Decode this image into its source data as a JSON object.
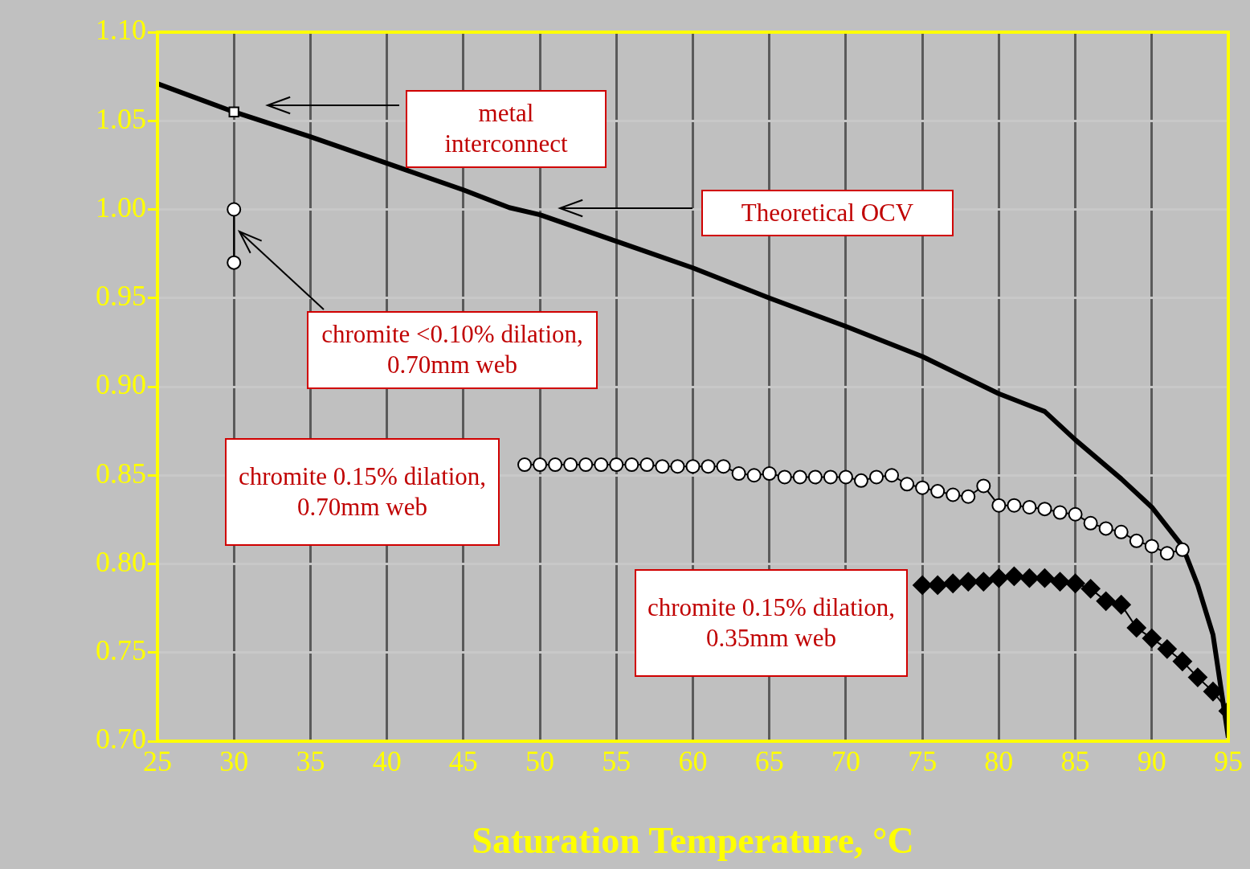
{
  "chart_data": {
    "type": "line",
    "xlabel": "Saturation Temperature, °C",
    "xlim": [
      25,
      95
    ],
    "xticks": [
      25,
      30,
      35,
      40,
      45,
      50,
      55,
      60,
      65,
      70,
      75,
      80,
      85,
      90,
      95
    ],
    "ylim": [
      0.7,
      1.1
    ],
    "yticks": [
      {
        "value": 0.7,
        "label": "0.70"
      },
      {
        "value": 0.75,
        "label": "0.75"
      },
      {
        "value": 0.8,
        "label": "0.80"
      },
      {
        "value": 0.85,
        "label": "0.85"
      },
      {
        "value": 0.9,
        "label": "0.90"
      },
      {
        "value": 0.95,
        "label": "0.95"
      },
      {
        "value": 1.0,
        "label": "1.00"
      },
      {
        "value": 1.05,
        "label": "1.05"
      },
      {
        "value": 1.1,
        "label": "1.10"
      }
    ],
    "grid": true,
    "legend": false,
    "series": [
      {
        "marker": "none",
        "color": "#000000",
        "x": [
          25,
          30,
          35,
          40,
          45,
          48,
          50,
          55,
          60,
          65,
          70,
          75,
          80,
          83,
          85,
          88,
          90,
          92,
          93,
          94,
          95
        ],
        "values": [
          1.071,
          1.055,
          1.041,
          1.026,
          1.011,
          1.001,
          0.997,
          0.982,
          0.967,
          0.95,
          0.934,
          0.917,
          0.896,
          0.886,
          0.87,
          0.848,
          0.832,
          0.81,
          0.788,
          0.76,
          0.702
        ]
      },
      {
        "marker": "square",
        "color": "#000000",
        "x": [
          30
        ],
        "values": [
          1.055
        ]
      },
      {
        "marker": "circle",
        "color": "#000000",
        "x": [
          30,
          30
        ],
        "values": [
          1.0,
          0.97
        ]
      },
      {
        "marker": "circle",
        "color": "#000000",
        "x": [
          49,
          50,
          51,
          52,
          53,
          54,
          55,
          56,
          57,
          58,
          59,
          60,
          61,
          62,
          63,
          64,
          65,
          66,
          67,
          68,
          69,
          70,
          71,
          72,
          73,
          74,
          75,
          76,
          77,
          78,
          79,
          80,
          81,
          82,
          83,
          84,
          85,
          86,
          87,
          88,
          89,
          90,
          91,
          92
        ],
        "values": [
          0.856,
          0.856,
          0.856,
          0.856,
          0.856,
          0.856,
          0.856,
          0.856,
          0.856,
          0.855,
          0.855,
          0.855,
          0.855,
          0.855,
          0.851,
          0.85,
          0.851,
          0.849,
          0.849,
          0.849,
          0.849,
          0.849,
          0.847,
          0.849,
          0.85,
          0.845,
          0.843,
          0.841,
          0.839,
          0.838,
          0.844,
          0.833,
          0.833,
          0.832,
          0.831,
          0.829,
          0.828,
          0.823,
          0.82,
          0.818,
          0.813,
          0.81,
          0.806,
          0.808
        ]
      },
      {
        "marker": "diamond",
        "color": "#000000",
        "x": [
          75,
          76,
          77,
          78,
          79,
          80,
          81,
          82,
          83,
          84,
          85,
          86,
          87,
          88,
          89,
          90,
          91,
          92,
          93,
          94,
          95
        ],
        "values": [
          0.788,
          0.788,
          0.789,
          0.79,
          0.79,
          0.792,
          0.793,
          0.792,
          0.792,
          0.79,
          0.789,
          0.786,
          0.779,
          0.777,
          0.764,
          0.758,
          0.752,
          0.745,
          0.736,
          0.728,
          0.717
        ]
      }
    ],
    "annotations": [
      "metal interconnect",
      "Theoretical OCV",
      "chromite <0.10% dilation, 0.70mm web",
      "chromite 0.15% dilation, 0.70mm web",
      "chromite 0.15% dilation, 0.35mm web"
    ]
  }
}
